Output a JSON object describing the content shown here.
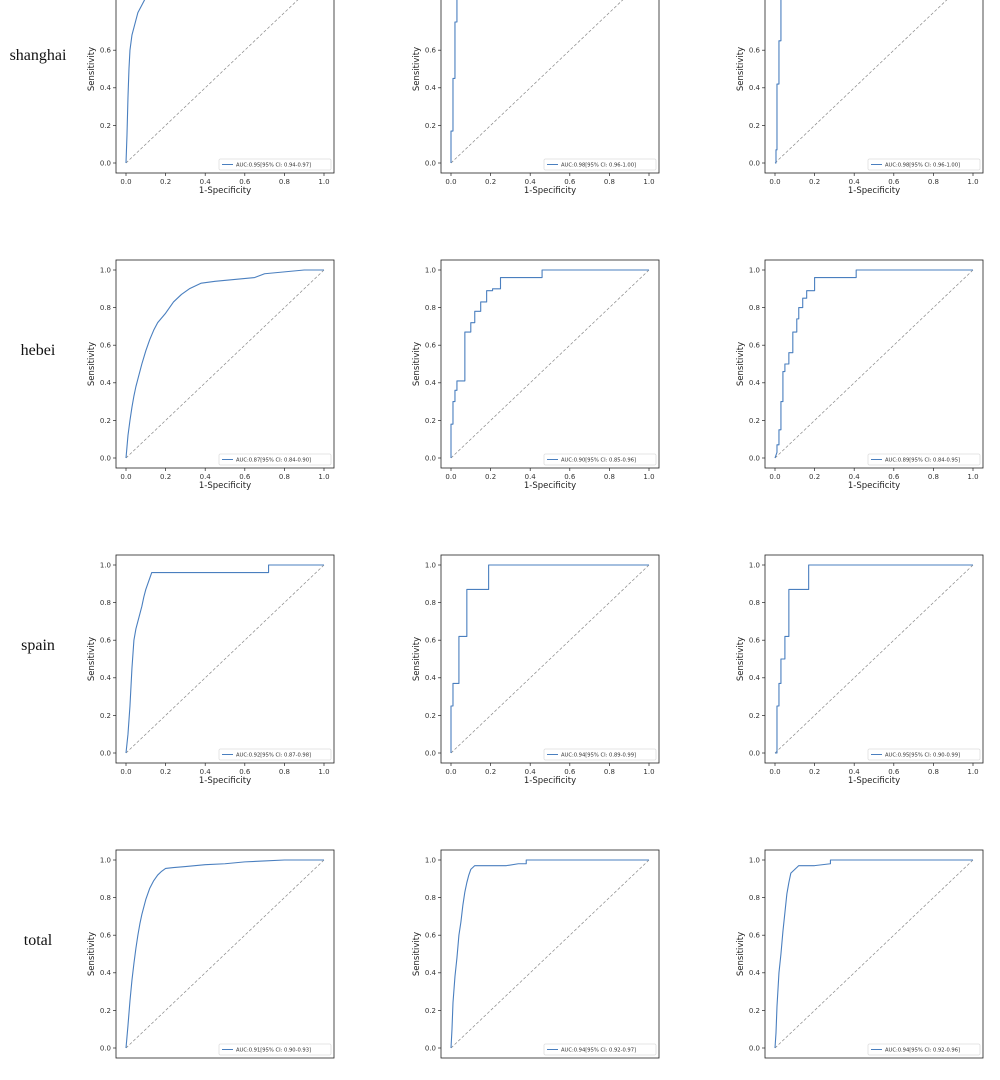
{
  "colors": {
    "roc": "#4a7fbf",
    "diagonal": "#888888",
    "frame": "#222222"
  },
  "rows": [
    {
      "label": "shanghai"
    },
    {
      "label": "hebei"
    },
    {
      "label": "spain"
    },
    {
      "label": "total"
    }
  ],
  "chart_data": [
    {
      "type": "line",
      "row": "shanghai",
      "col": 1,
      "xlabel": "1-Specificity",
      "ylabel": "Sensitivity",
      "xlim": [
        0,
        1
      ],
      "ylim": [
        0,
        1
      ],
      "xticks": [
        "0.0",
        "0.2",
        "0.4",
        "0.6",
        "0.8",
        "1.0"
      ],
      "yticks": [
        "0.0",
        "0.2",
        "0.4",
        "0.6"
      ],
      "legend": "AUC:0.95[95% CI: 0.94-0.97]",
      "legend_loc": "lower right",
      "series": [
        {
          "x": [
            0,
            0.005,
            0.01,
            0.015,
            0.02,
            0.03,
            0.04,
            0.05,
            0.06,
            0.08,
            0.1
          ],
          "y": [
            0,
            0.15,
            0.35,
            0.5,
            0.6,
            0.68,
            0.72,
            0.76,
            0.8,
            0.84,
            0.88
          ]
        }
      ]
    },
    {
      "type": "line",
      "row": "shanghai",
      "col": 2,
      "xlabel": "1-Specificity",
      "ylabel": "Sensitivity",
      "xlim": [
        0,
        1
      ],
      "ylim": [
        0,
        1
      ],
      "xticks": [
        "0.0",
        "0.2",
        "0.4",
        "0.6",
        "0.8",
        "1.0"
      ],
      "yticks": [
        "0.0",
        "0.2",
        "0.4",
        "0.6"
      ],
      "legend": "AUC:0.98[95% CI: 0.96-1.00]",
      "legend_loc": "lower right",
      "series": [
        {
          "x": [
            0,
            0,
            0.01,
            0.01,
            0.02,
            0.02,
            0.03,
            0.03
          ],
          "y": [
            0,
            0.17,
            0.17,
            0.45,
            0.45,
            0.75,
            0.75,
            0.88
          ]
        }
      ]
    },
    {
      "type": "line",
      "row": "shanghai",
      "col": 3,
      "xlabel": "1-Specificity",
      "ylabel": "Sensitivity",
      "xlim": [
        0,
        1
      ],
      "ylim": [
        0,
        1
      ],
      "xticks": [
        "0.0",
        "0.2",
        "0.4",
        "0.6",
        "0.8",
        "1.0"
      ],
      "yticks": [
        "0.0",
        "0.2",
        "0.4",
        "0.6"
      ],
      "legend": "AUC:0.98[95% CI: 0.96-1.00]",
      "legend_loc": "lower right",
      "series": [
        {
          "x": [
            0,
            0.005,
            0.005,
            0.01,
            0.01,
            0.02,
            0.02,
            0.03,
            0.03
          ],
          "y": [
            0,
            0,
            0.07,
            0.07,
            0.42,
            0.42,
            0.65,
            0.65,
            0.88
          ]
        }
      ]
    },
    {
      "type": "line",
      "row": "hebei",
      "col": 1,
      "xlabel": "1-Specificity",
      "ylabel": "Sensitivity",
      "xlim": [
        0,
        1
      ],
      "ylim": [
        0,
        1
      ],
      "xticks": [
        "0.0",
        "0.2",
        "0.4",
        "0.6",
        "0.8",
        "1.0"
      ],
      "yticks": [
        "0.0",
        "0.2",
        "0.4",
        "0.6",
        "0.8",
        "1.0"
      ],
      "legend": "AUC:0.87[95% CI: 0.84-0.90]",
      "legend_loc": "lower right",
      "series": [
        {
          "x": [
            0,
            0.01,
            0.02,
            0.03,
            0.04,
            0.05,
            0.06,
            0.08,
            0.1,
            0.12,
            0.14,
            0.16,
            0.2,
            0.24,
            0.28,
            0.32,
            0.38,
            0.45,
            0.55,
            0.65,
            0.7,
            0.8,
            0.9,
            1.0
          ],
          "y": [
            0,
            0.12,
            0.2,
            0.27,
            0.33,
            0.38,
            0.42,
            0.5,
            0.57,
            0.63,
            0.68,
            0.72,
            0.77,
            0.83,
            0.87,
            0.9,
            0.93,
            0.94,
            0.95,
            0.96,
            0.98,
            0.99,
            1.0,
            1.0
          ]
        }
      ]
    },
    {
      "type": "line",
      "row": "hebei",
      "col": 2,
      "xlabel": "1-Specificity",
      "ylabel": "Sensitivity",
      "xlim": [
        0,
        1
      ],
      "ylim": [
        0,
        1
      ],
      "xticks": [
        "0.0",
        "0.2",
        "0.4",
        "0.6",
        "0.8",
        "1.0"
      ],
      "yticks": [
        "0.0",
        "0.2",
        "0.4",
        "0.6",
        "0.8",
        "1.0"
      ],
      "legend": "AUC:0.90[95% CI: 0.85-0.96]",
      "legend_loc": "lower right",
      "series": [
        {
          "x": [
            0,
            0,
            0.01,
            0.01,
            0.02,
            0.02,
            0.03,
            0.03,
            0.05,
            0.07,
            0.07,
            0.1,
            0.1,
            0.12,
            0.12,
            0.15,
            0.15,
            0.18,
            0.18,
            0.21,
            0.21,
            0.25,
            0.25,
            0.46,
            0.46,
            1.0
          ],
          "y": [
            0,
            0.18,
            0.18,
            0.3,
            0.3,
            0.36,
            0.36,
            0.41,
            0.41,
            0.41,
            0.67,
            0.67,
            0.72,
            0.72,
            0.78,
            0.78,
            0.83,
            0.83,
            0.89,
            0.89,
            0.9,
            0.9,
            0.96,
            0.96,
            1.0,
            1.0
          ]
        }
      ]
    },
    {
      "type": "line",
      "row": "hebei",
      "col": 3,
      "xlabel": "1-Specificity",
      "ylabel": "Sensitivity",
      "xlim": [
        0,
        1
      ],
      "ylim": [
        0,
        1
      ],
      "xticks": [
        "0.0",
        "0.2",
        "0.4",
        "0.6",
        "0.8",
        "1.0"
      ],
      "yticks": [
        "0.0",
        "0.2",
        "0.4",
        "0.6",
        "0.8",
        "1.0"
      ],
      "legend": "AUC:0.89[95% CI: 0.84-0.95]",
      "legend_loc": "lower right",
      "series": [
        {
          "x": [
            0,
            0.01,
            0.01,
            0.02,
            0.02,
            0.03,
            0.03,
            0.04,
            0.04,
            0.05,
            0.05,
            0.07,
            0.07,
            0.09,
            0.09,
            0.11,
            0.11,
            0.12,
            0.12,
            0.14,
            0.14,
            0.16,
            0.16,
            0.2,
            0.2,
            0.25,
            0.25,
            0.41,
            0.41,
            1.0
          ],
          "y": [
            0,
            0.03,
            0.07,
            0.07,
            0.15,
            0.15,
            0.3,
            0.3,
            0.46,
            0.46,
            0.5,
            0.5,
            0.56,
            0.56,
            0.67,
            0.67,
            0.74,
            0.74,
            0.8,
            0.8,
            0.85,
            0.85,
            0.89,
            0.89,
            0.96,
            0.96,
            0.96,
            0.96,
            1.0,
            1.0
          ]
        }
      ]
    },
    {
      "type": "line",
      "row": "spain",
      "col": 1,
      "xlabel": "1-Specificity",
      "ylabel": "Sensitivity",
      "xlim": [
        0,
        1
      ],
      "ylim": [
        0,
        1
      ],
      "xticks": [
        "0.0",
        "0.2",
        "0.4",
        "0.6",
        "0.8",
        "1.0"
      ],
      "yticks": [
        "0.0",
        "0.2",
        "0.4",
        "0.6",
        "0.8",
        "1.0"
      ],
      "legend": "AUC:0.92[95% CI: 0.87-0.98]",
      "legend_loc": "lower right",
      "series": [
        {
          "x": [
            0,
            0.01,
            0.02,
            0.03,
            0.04,
            0.05,
            0.06,
            0.07,
            0.08,
            0.09,
            0.1,
            0.11,
            0.12,
            0.13,
            0.72,
            0.72,
            1.0
          ],
          "y": [
            0,
            0.1,
            0.25,
            0.45,
            0.6,
            0.66,
            0.7,
            0.74,
            0.78,
            0.83,
            0.87,
            0.9,
            0.93,
            0.96,
            0.96,
            1.0,
            1.0
          ]
        }
      ]
    },
    {
      "type": "line",
      "row": "spain",
      "col": 2,
      "xlabel": "1-Specificity",
      "ylabel": "Sensitivity",
      "xlim": [
        0,
        1
      ],
      "ylim": [
        0,
        1
      ],
      "xticks": [
        "0.0",
        "0.2",
        "0.4",
        "0.6",
        "0.8",
        "1.0"
      ],
      "yticks": [
        "0.0",
        "0.2",
        "0.4",
        "0.6",
        "0.8",
        "1.0"
      ],
      "legend": "AUC:0.94[95% CI: 0.89-0.99]",
      "legend_loc": "lower right",
      "series": [
        {
          "x": [
            0,
            0,
            0.01,
            0.01,
            0.04,
            0.04,
            0.08,
            0.08,
            0.19,
            0.19,
            1.0
          ],
          "y": [
            0,
            0.25,
            0.25,
            0.37,
            0.37,
            0.62,
            0.62,
            0.87,
            0.87,
            1.0,
            1.0
          ]
        }
      ]
    },
    {
      "type": "line",
      "row": "spain",
      "col": 3,
      "xlabel": "1-Specificity",
      "ylabel": "Sensitivity",
      "xlim": [
        0,
        1
      ],
      "ylim": [
        0,
        1
      ],
      "xticks": [
        "0.0",
        "0.2",
        "0.4",
        "0.6",
        "0.8",
        "1.0"
      ],
      "yticks": [
        "0.0",
        "0.2",
        "0.4",
        "0.6",
        "0.8",
        "1.0"
      ],
      "legend": "AUC:0.95[95% CI: 0.90-0.99]",
      "legend_loc": "lower right",
      "series": [
        {
          "x": [
            0,
            0.01,
            0.01,
            0.02,
            0.02,
            0.03,
            0.03,
            0.05,
            0.05,
            0.07,
            0.07,
            0.17,
            0.17,
            1.0
          ],
          "y": [
            0,
            0,
            0.25,
            0.25,
            0.37,
            0.37,
            0.5,
            0.5,
            0.62,
            0.62,
            0.87,
            0.87,
            1.0,
            1.0
          ]
        }
      ]
    },
    {
      "type": "line",
      "row": "total",
      "col": 1,
      "xlabel": "",
      "ylabel": "Sensitivity",
      "xlim": [
        0,
        1
      ],
      "ylim": [
        0,
        1
      ],
      "xticks": [],
      "yticks": [
        "0.0",
        "0.2",
        "0.4",
        "0.6",
        "0.8",
        "1.0"
      ],
      "legend": "AUC:0.91[95% CI: 0.90-0.93]",
      "legend_loc": "lower right",
      "series": [
        {
          "x": [
            0,
            0.01,
            0.02,
            0.03,
            0.04,
            0.05,
            0.06,
            0.07,
            0.08,
            0.09,
            0.1,
            0.12,
            0.14,
            0.16,
            0.18,
            0.2,
            0.24,
            0.3,
            0.4,
            0.5,
            0.6,
            0.7,
            0.8,
            0.9,
            1.0
          ],
          "y": [
            0,
            0.12,
            0.25,
            0.36,
            0.45,
            0.53,
            0.6,
            0.66,
            0.71,
            0.75,
            0.79,
            0.85,
            0.89,
            0.92,
            0.94,
            0.955,
            0.96,
            0.965,
            0.975,
            0.98,
            0.99,
            0.995,
            1.0,
            1.0,
            1.0
          ]
        }
      ]
    },
    {
      "type": "line",
      "row": "total",
      "col": 2,
      "xlabel": "",
      "ylabel": "Sensitivity",
      "xlim": [
        0,
        1
      ],
      "ylim": [
        0,
        1
      ],
      "xticks": [],
      "yticks": [
        "0.0",
        "0.2",
        "0.4",
        "0.6",
        "0.8",
        "1.0"
      ],
      "legend": "AUC:0.94[95% CI: 0.92-0.97]",
      "legend_loc": "lower right",
      "series": [
        {
          "x": [
            0,
            0.005,
            0.01,
            0.02,
            0.03,
            0.04,
            0.05,
            0.06,
            0.07,
            0.08,
            0.09,
            0.1,
            0.12,
            0.14,
            0.16,
            0.2,
            0.28,
            0.34,
            0.38,
            0.38,
            1.0
          ],
          "y": [
            0,
            0.1,
            0.24,
            0.38,
            0.48,
            0.6,
            0.67,
            0.76,
            0.83,
            0.88,
            0.92,
            0.95,
            0.97,
            0.97,
            0.97,
            0.97,
            0.97,
            0.98,
            0.98,
            1.0,
            1.0
          ]
        }
      ]
    },
    {
      "type": "line",
      "row": "total",
      "col": 3,
      "xlabel": "",
      "ylabel": "Sensitivity",
      "xlim": [
        0,
        1
      ],
      "ylim": [
        0,
        1
      ],
      "xticks": [],
      "yticks": [
        "0.0",
        "0.2",
        "0.4",
        "0.6",
        "0.8",
        "1.0"
      ],
      "legend": "AUC:0.94[95% CI: 0.92-0.96]",
      "legend_loc": "lower right",
      "series": [
        {
          "x": [
            0,
            0.005,
            0.01,
            0.02,
            0.03,
            0.04,
            0.05,
            0.06,
            0.07,
            0.08,
            0.1,
            0.12,
            0.14,
            0.2,
            0.28,
            0.28,
            1.0
          ],
          "y": [
            0,
            0.08,
            0.22,
            0.4,
            0.5,
            0.62,
            0.72,
            0.82,
            0.88,
            0.93,
            0.95,
            0.97,
            0.97,
            0.97,
            0.98,
            1.0,
            1.0
          ]
        }
      ]
    }
  ]
}
